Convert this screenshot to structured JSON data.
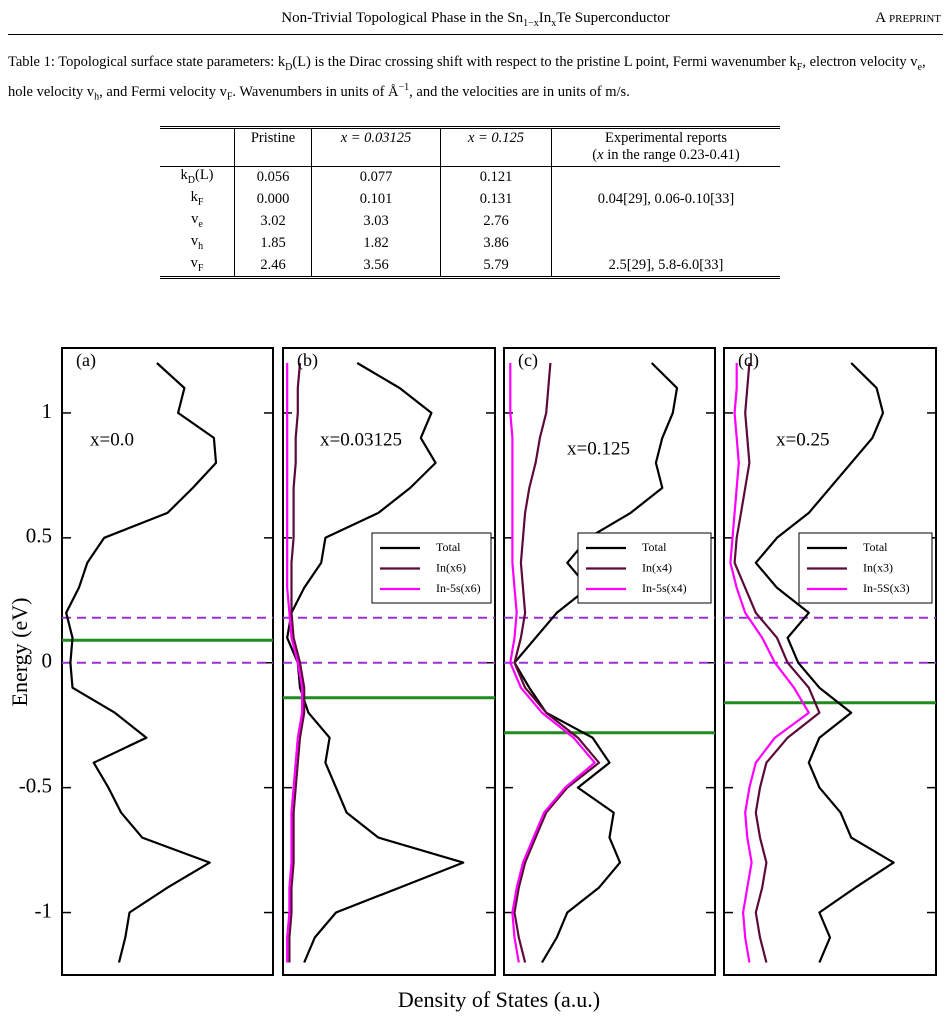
{
  "header": {
    "title": [
      "Non-Trivial Topological Phase in the Sn",
      "1−x",
      "In",
      "x",
      "Te Superconductor"
    ],
    "tag": "A preprint"
  },
  "table": {
    "caption": [
      "Table 1: Topological surface state parameters: k",
      "D",
      "(L) is the Dirac crossing shift with respect to the pristine L point, Fermi wavenumber k",
      "F",
      ", electron velocity v",
      "e",
      ", hole velocity v",
      "h",
      ", and Fermi velocity v",
      "F",
      ". Wavenumbers in units of Å",
      "−1",
      ", and the velocities are in units of m/s."
    ],
    "columns": [
      "Pristine",
      "x = 0.03125",
      "x = 0.125"
    ],
    "experimental_header": [
      "Experimental reports",
      "(",
      "x",
      " in the range 0.23-0.41)"
    ],
    "rows": [
      {
        "label": [
          "k",
          "D",
          "(L)"
        ],
        "values": [
          "0.056",
          "0.077",
          "0.121"
        ]
      },
      {
        "label": [
          "k",
          "F"
        ],
        "values": [
          "0.000",
          "0.101",
          "0.131"
        ],
        "experimental": "0.04[29], 0.06-0.10[33]"
      },
      {
        "label": [
          "v",
          "e"
        ],
        "values": [
          "3.02",
          "3.03",
          "2.76"
        ]
      },
      {
        "label": [
          "v",
          "h"
        ],
        "values": [
          "1.85",
          "1.82",
          "3.86"
        ]
      },
      {
        "label": [
          "v",
          "F"
        ],
        "values": [
          "2.46",
          "3.56",
          "5.79"
        ],
        "experimental": "2.5[29], 5.8-6.0[33]"
      }
    ]
  },
  "chart_data": {
    "type": "line",
    "ylabel": "Energy (eV)",
    "xlabel": "Density of States (a.u.)",
    "ylim": [
      -1.25,
      1.26
    ],
    "yticks": [
      -1,
      -0.5,
      0,
      0.5,
      1
    ],
    "xlim": [
      0,
      1
    ],
    "reference_lines": [
      0,
      0.18
    ],
    "reference_color": "#9b30d9",
    "fermi_color": "#1e8c1e",
    "energy": [
      -1.2,
      -1.1,
      -1.0,
      -0.9,
      -0.8,
      -0.7,
      -0.6,
      -0.5,
      -0.4,
      -0.3,
      -0.2,
      -0.1,
      0,
      0.1,
      0.2,
      0.3,
      0.4,
      0.5,
      0.6,
      0.7,
      0.8,
      0.9,
      1.0,
      1.1,
      1.2
    ],
    "panels": [
      {
        "label": "(a)",
        "annotation": "x=0.0",
        "fermi_level": 0.09,
        "series": [
          {
            "name": "Total",
            "color": "#000000",
            "values": [
              0.27,
              0.3,
              0.32,
              0.5,
              0.7,
              0.38,
              0.28,
              0.22,
              0.15,
              0.4,
              0.25,
              0.05,
              0.04,
              0.05,
              0.02,
              0.08,
              0.12,
              0.2,
              0.5,
              0.62,
              0.73,
              0.72,
              0.55,
              0.58,
              0.45
            ]
          }
        ]
      },
      {
        "label": "(b)",
        "annotation": "x=0.03125",
        "fermi_level": -0.14,
        "series": [
          {
            "name": "Total",
            "color": "#000000",
            "values": [
              0.1,
              0.15,
              0.25,
              0.55,
              0.85,
              0.45,
              0.3,
              0.25,
              0.2,
              0.22,
              0.12,
              0.08,
              0.07,
              0.02,
              0.04,
              0.1,
              0.18,
              0.2,
              0.45,
              0.6,
              0.72,
              0.65,
              0.7,
              0.55,
              0.35
            ]
          },
          {
            "name": "In(x6)",
            "color": "#5c0a3a",
            "values": [
              0.03,
              0.03,
              0.04,
              0.04,
              0.05,
              0.05,
              0.05,
              0.06,
              0.07,
              0.08,
              0.1,
              0.1,
              0.08,
              0.05,
              0.04,
              0.04,
              0.04,
              0.05,
              0.05,
              0.05,
              0.06,
              0.06,
              0.07,
              0.07,
              0.08
            ]
          },
          {
            "name": "In-5s(x6)",
            "color": "#ff00ff",
            "values": [
              0.02,
              0.02,
              0.03,
              0.03,
              0.04,
              0.04,
              0.04,
              0.05,
              0.06,
              0.07,
              0.09,
              0.09,
              0.07,
              0.04,
              0.03,
              0.02,
              0.02,
              0.02,
              0.02,
              0.02,
              0.02,
              0.02,
              0.02,
              0.02,
              0.02
            ]
          }
        ]
      },
      {
        "label": "(c)",
        "annotation": "x=0.125",
        "fermi_level": -0.28,
        "series": [
          {
            "name": "Total",
            "color": "#000000",
            "values": [
              0.18,
              0.25,
              0.3,
              0.45,
              0.55,
              0.5,
              0.52,
              0.35,
              0.5,
              0.42,
              0.2,
              0.12,
              0.05,
              0.15,
              0.25,
              0.4,
              0.3,
              0.4,
              0.6,
              0.75,
              0.72,
              0.75,
              0.8,
              0.82,
              0.7
            ]
          },
          {
            "name": "In(x4)",
            "color": "#5c0a3a",
            "values": [
              0.1,
              0.07,
              0.05,
              0.07,
              0.1,
              0.15,
              0.2,
              0.3,
              0.45,
              0.35,
              0.2,
              0.1,
              0.05,
              0.08,
              0.1,
              0.09,
              0.08,
              0.09,
              0.1,
              0.12,
              0.15,
              0.17,
              0.2,
              0.21,
              0.22
            ]
          },
          {
            "name": "In-5s(x4)",
            "color": "#ff00ff",
            "values": [
              0.07,
              0.05,
              0.04,
              0.06,
              0.09,
              0.14,
              0.19,
              0.29,
              0.43,
              0.33,
              0.18,
              0.08,
              0.03,
              0.05,
              0.06,
              0.05,
              0.04,
              0.04,
              0.04,
              0.04,
              0.04,
              0.04,
              0.03,
              0.03,
              0.03
            ]
          }
        ]
      },
      {
        "label": "(d)",
        "annotation": "x=0.25",
        "fermi_level": -0.16,
        "series": [
          {
            "name": "Total",
            "color": "#000000",
            "values": [
              0.45,
              0.5,
              0.45,
              0.62,
              0.8,
              0.6,
              0.55,
              0.45,
              0.4,
              0.45,
              0.6,
              0.45,
              0.35,
              0.3,
              0.4,
              0.25,
              0.15,
              0.25,
              0.4,
              0.5,
              0.6,
              0.7,
              0.75,
              0.72,
              0.6
            ]
          },
          {
            "name": "In(x3)",
            "color": "#5c0a3a",
            "values": [
              0.2,
              0.17,
              0.15,
              0.18,
              0.2,
              0.17,
              0.15,
              0.17,
              0.2,
              0.3,
              0.45,
              0.4,
              0.3,
              0.25,
              0.15,
              0.1,
              0.05,
              0.06,
              0.08,
              0.1,
              0.12,
              0.11,
              0.1,
              0.11,
              0.12
            ]
          },
          {
            "name": "In-5S(x3)",
            "color": "#ff00ff",
            "values": [
              0.12,
              0.1,
              0.09,
              0.11,
              0.13,
              0.11,
              0.1,
              0.12,
              0.15,
              0.24,
              0.4,
              0.33,
              0.24,
              0.18,
              0.1,
              0.06,
              0.03,
              0.04,
              0.05,
              0.06,
              0.07,
              0.06,
              0.05,
              0.06,
              0.06
            ]
          }
        ]
      }
    ]
  }
}
